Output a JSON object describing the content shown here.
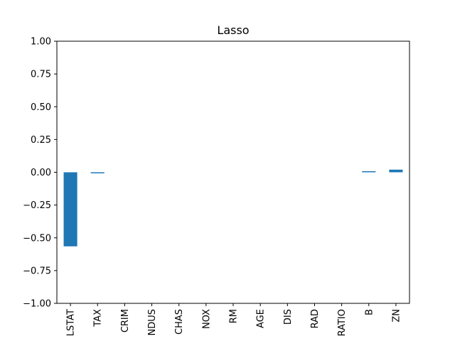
{
  "chart_data": {
    "type": "bar",
    "title": "Lasso",
    "xlabel": "",
    "ylabel": "",
    "ylim": [
      -1.0,
      1.0
    ],
    "yticks": [
      1.0,
      0.75,
      0.5,
      0.25,
      0.0,
      -0.25,
      -0.5,
      -0.75,
      -1.0
    ],
    "ytick_labels": [
      "1.00",
      "0.75",
      "0.50",
      "0.25",
      "0.00",
      "−0.25",
      "−0.50",
      "−0.75",
      "−1.00"
    ],
    "categories": [
      "LSTAT",
      "TAX",
      "CRIM",
      "NDUS",
      "CHAS",
      "NOX",
      "RM",
      "AGE",
      "DIS",
      "RAD",
      "RATIO",
      "B",
      "ZN"
    ],
    "values": [
      -0.565,
      -0.008,
      0.0,
      0.0,
      0.0,
      0.0,
      0.0,
      0.0,
      0.0,
      0.0,
      0.0,
      0.004,
      0.02
    ],
    "grid": false,
    "legend": "none",
    "bar_color": "#1f77b4"
  }
}
